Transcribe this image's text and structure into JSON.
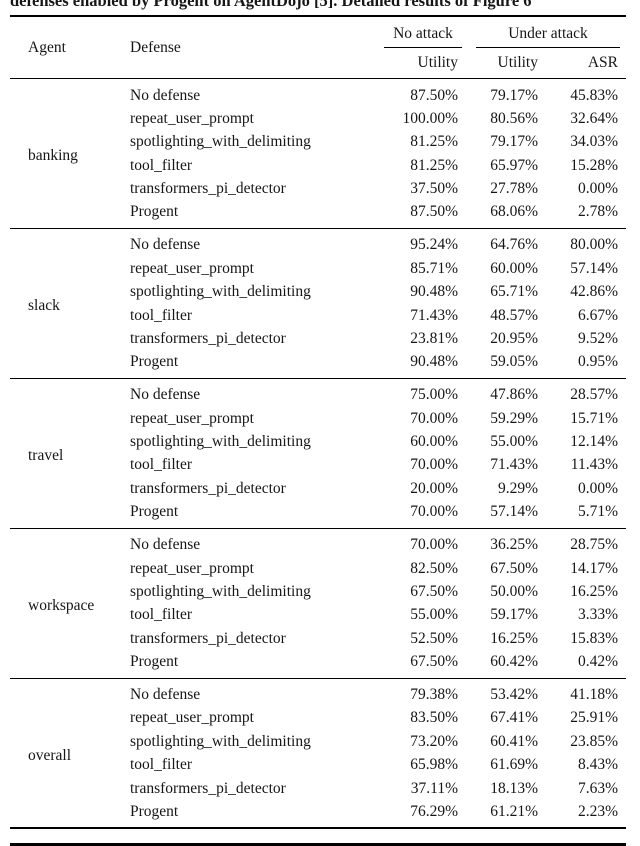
{
  "caption": "defenses enabled by Progent on AgentDojo [5]. Detailed results of Figure 6",
  "table": {
    "col_headers": {
      "agent": "Agent",
      "defense": "Defense",
      "no_attack": "No attack",
      "under_attack": "Under attack",
      "utility": "Utility",
      "asr": "ASR"
    },
    "groups": [
      {
        "agent": "banking",
        "rows": [
          {
            "defense": "No defense",
            "no_attack_utility": "87.50%",
            "under_attack_utility": "79.17%",
            "asr": "45.83%"
          },
          {
            "defense": "repeat_user_prompt",
            "no_attack_utility": "100.00%",
            "under_attack_utility": "80.56%",
            "asr": "32.64%"
          },
          {
            "defense": "spotlighting_with_delimiting",
            "no_attack_utility": "81.25%",
            "under_attack_utility": "79.17%",
            "asr": "34.03%"
          },
          {
            "defense": "tool_filter",
            "no_attack_utility": "81.25%",
            "under_attack_utility": "65.97%",
            "asr": "15.28%"
          },
          {
            "defense": "transformers_pi_detector",
            "no_attack_utility": "37.50%",
            "under_attack_utility": "27.78%",
            "asr": "0.00%"
          },
          {
            "defense": "Progent",
            "no_attack_utility": "87.50%",
            "under_attack_utility": "68.06%",
            "asr": "2.78%"
          }
        ]
      },
      {
        "agent": "slack",
        "rows": [
          {
            "defense": "No defense",
            "no_attack_utility": "95.24%",
            "under_attack_utility": "64.76%",
            "asr": "80.00%"
          },
          {
            "defense": "repeat_user_prompt",
            "no_attack_utility": "85.71%",
            "under_attack_utility": "60.00%",
            "asr": "57.14%"
          },
          {
            "defense": "spotlighting_with_delimiting",
            "no_attack_utility": "90.48%",
            "under_attack_utility": "65.71%",
            "asr": "42.86%"
          },
          {
            "defense": "tool_filter",
            "no_attack_utility": "71.43%",
            "under_attack_utility": "48.57%",
            "asr": "6.67%"
          },
          {
            "defense": "transformers_pi_detector",
            "no_attack_utility": "23.81%",
            "under_attack_utility": "20.95%",
            "asr": "9.52%"
          },
          {
            "defense": "Progent",
            "no_attack_utility": "90.48%",
            "under_attack_utility": "59.05%",
            "asr": "0.95%"
          }
        ]
      },
      {
        "agent": "travel",
        "rows": [
          {
            "defense": "No defense",
            "no_attack_utility": "75.00%",
            "under_attack_utility": "47.86%",
            "asr": "28.57%"
          },
          {
            "defense": "repeat_user_prompt",
            "no_attack_utility": "70.00%",
            "under_attack_utility": "59.29%",
            "asr": "15.71%"
          },
          {
            "defense": "spotlighting_with_delimiting",
            "no_attack_utility": "60.00%",
            "under_attack_utility": "55.00%",
            "asr": "12.14%"
          },
          {
            "defense": "tool_filter",
            "no_attack_utility": "70.00%",
            "under_attack_utility": "71.43%",
            "asr": "11.43%"
          },
          {
            "defense": "transformers_pi_detector",
            "no_attack_utility": "20.00%",
            "under_attack_utility": "9.29%",
            "asr": "0.00%"
          },
          {
            "defense": "Progent",
            "no_attack_utility": "70.00%",
            "under_attack_utility": "57.14%",
            "asr": "5.71%"
          }
        ]
      },
      {
        "agent": "workspace",
        "rows": [
          {
            "defense": "No defense",
            "no_attack_utility": "70.00%",
            "under_attack_utility": "36.25%",
            "asr": "28.75%"
          },
          {
            "defense": "repeat_user_prompt",
            "no_attack_utility": "82.50%",
            "under_attack_utility": "67.50%",
            "asr": "14.17%"
          },
          {
            "defense": "spotlighting_with_delimiting",
            "no_attack_utility": "67.50%",
            "under_attack_utility": "50.00%",
            "asr": "16.25%"
          },
          {
            "defense": "tool_filter",
            "no_attack_utility": "55.00%",
            "under_attack_utility": "59.17%",
            "asr": "3.33%"
          },
          {
            "defense": "transformers_pi_detector",
            "no_attack_utility": "52.50%",
            "under_attack_utility": "16.25%",
            "asr": "15.83%"
          },
          {
            "defense": "Progent",
            "no_attack_utility": "67.50%",
            "under_attack_utility": "60.42%",
            "asr": "0.42%"
          }
        ]
      },
      {
        "agent": "overall",
        "rows": [
          {
            "defense": "No defense",
            "no_attack_utility": "79.38%",
            "under_attack_utility": "53.42%",
            "asr": "41.18%"
          },
          {
            "defense": "repeat_user_prompt",
            "no_attack_utility": "83.50%",
            "under_attack_utility": "67.41%",
            "asr": "25.91%"
          },
          {
            "defense": "spotlighting_with_delimiting",
            "no_attack_utility": "73.20%",
            "under_attack_utility": "60.41%",
            "asr": "23.85%"
          },
          {
            "defense": "tool_filter",
            "no_attack_utility": "65.98%",
            "under_attack_utility": "61.69%",
            "asr": "8.43%"
          },
          {
            "defense": "transformers_pi_detector",
            "no_attack_utility": "37.11%",
            "under_attack_utility": "18.13%",
            "asr": "7.63%"
          },
          {
            "defense": "Progent",
            "no_attack_utility": "76.29%",
            "under_attack_utility": "61.21%",
            "asr": "2.23%"
          }
        ]
      }
    ]
  }
}
